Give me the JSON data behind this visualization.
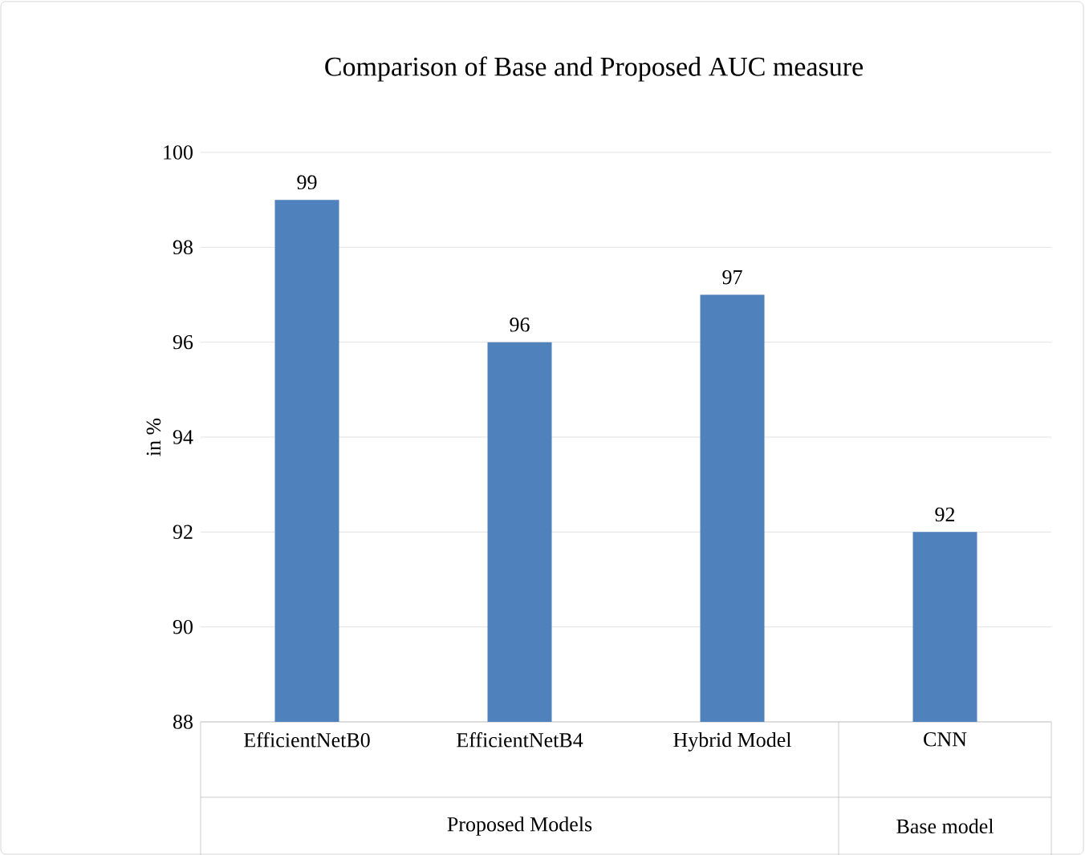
{
  "chart_data": {
    "type": "bar",
    "title": "Comparison of Base and Proposed  AUC measure",
    "ylabel": "in %",
    "categories": [
      "EfficientNetB0",
      "EfficientNetB4",
      "Hybrid Model",
      "CNN"
    ],
    "values": [
      99,
      96,
      97,
      92
    ],
    "color": "#4f81bd",
    "ylim": [
      88,
      100
    ],
    "yticks": [
      88,
      90,
      92,
      94,
      96,
      98,
      100
    ],
    "grid": "y",
    "data_labels": true,
    "annotations": [
      "Proposed Models",
      "Base model"
    ]
  }
}
